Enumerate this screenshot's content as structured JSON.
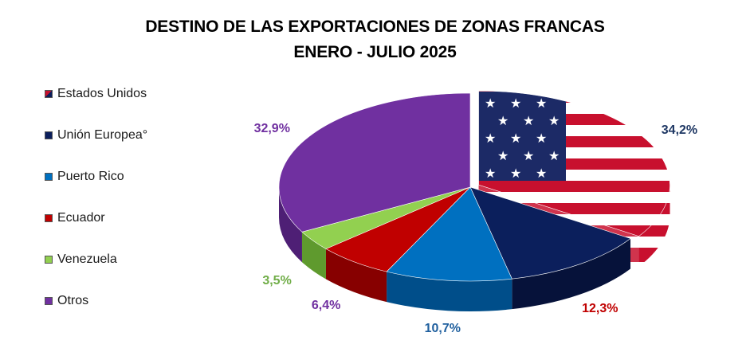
{
  "chart_data": {
    "type": "pie",
    "title": "DESTINO DE LAS EXPORTACIONES DE ZONAS FRANCAS",
    "subtitle": "ENERO - JULIO 2025",
    "legend_position": "left",
    "categories": [
      "Estados Unidos",
      "Unión Europea°",
      "Puerto Rico",
      "Ecuador",
      "Venezuela",
      "Otros"
    ],
    "values": [
      34.2,
      12.3,
      10.7,
      6.4,
      3.5,
      32.9
    ],
    "data_labels": [
      "34,2%",
      "12,3%",
      "10,7%",
      "6,4%",
      "3,5%",
      "32,9%"
    ],
    "label_colors": [
      "#1f3864",
      "#c00000",
      "#1f5f9e",
      "#7030a0",
      "#70ad47",
      "#7030a0"
    ],
    "colors": [
      "#c8102e",
      "#0b1f5c",
      "#0070c0",
      "#c00000",
      "#92d050",
      "#7030a0"
    ],
    "side_colors": [
      "#8a0a1e",
      "#06123a",
      "#004e8a",
      "#870000",
      "#5f9a2e",
      "#4e1f75"
    ]
  }
}
